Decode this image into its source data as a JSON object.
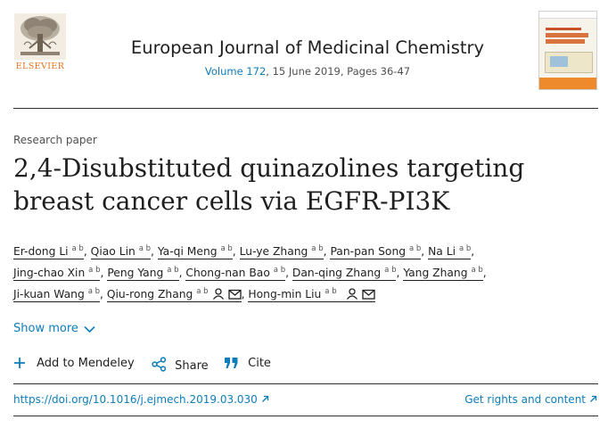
{
  "header": {
    "publisher_logo_text": "ELSEVIER",
    "journal_title": "European Journal of Medicinal Chemistry",
    "volume_link": "Volume 172",
    "issue_details": ", 15 June 2019, Pages 36-47"
  },
  "article": {
    "type": "Research paper",
    "title_line1": "2,4-Disubstituted quinazolines targeting",
    "title_line2": "breast cancer cells via EGFR-PI3K"
  },
  "authors": [
    {
      "name": "Er-dong Li",
      "aff": "a b"
    },
    {
      "name": "Qiao Lin",
      "aff": "a b"
    },
    {
      "name": "Ya-qi Meng",
      "aff": "a b"
    },
    {
      "name": "Lu-ye Zhang",
      "aff": "a b"
    },
    {
      "name": "Pan-pan Song",
      "aff": "a b"
    },
    {
      "name": "Na Li",
      "aff": "a b"
    },
    {
      "name": "Jing-chao Xin",
      "aff": "a b"
    },
    {
      "name": "Peng Yang",
      "aff": "a b"
    },
    {
      "name": "Chong-nan Bao",
      "aff": "a b"
    },
    {
      "name": "Dan-qing Zhang",
      "aff": "a b"
    },
    {
      "name": "Yang Zhang",
      "aff": "a b"
    },
    {
      "name": "Ji-kuan Wang",
      "aff": "a b"
    },
    {
      "name": "Qiu-rong Zhang",
      "aff": "a b"
    },
    {
      "name": "Hong-min Liu",
      "aff": "a b"
    }
  ],
  "show_more": "Show more",
  "actions": {
    "mendeley": "Add to Mendeley",
    "share": "Share",
    "cite": "Cite"
  },
  "links": {
    "doi": "https://doi.org/10.1016/j.ejmech.2019.03.030",
    "rights": "Get rights and content"
  },
  "colors": {
    "link": "#0c7dbb",
    "text": "#1f1f1f",
    "logo": "#e9711c"
  }
}
